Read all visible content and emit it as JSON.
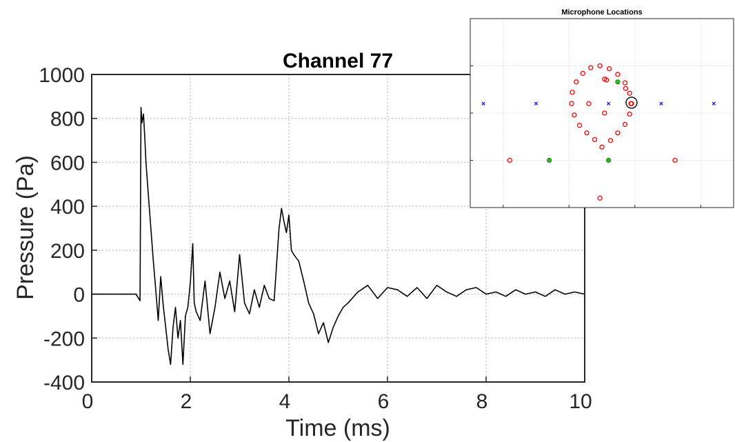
{
  "chart_data": [
    {
      "type": "line",
      "title": "Channel 77",
      "xlabel": "Time (ms)",
      "ylabel": "Pressure (Pa)",
      "xlim": [
        0,
        10
      ],
      "ylim": [
        -400,
        1000
      ],
      "xticks": [
        "0",
        "2",
        "4",
        "6",
        "8",
        "10"
      ],
      "yticks": [
        "-400",
        "-200",
        "0",
        "200",
        "400",
        "600",
        "800",
        "1000"
      ],
      "grid": true,
      "series": [
        {
          "color": "#000000",
          "x": [
            0,
            0.5,
            0.9,
            0.98,
            1.0,
            1.02,
            1.05,
            1.08,
            1.1,
            1.15,
            1.2,
            1.25,
            1.3,
            1.35,
            1.4,
            1.45,
            1.5,
            1.55,
            1.6,
            1.65,
            1.7,
            1.75,
            1.8,
            1.85,
            1.9,
            1.95,
            2.0,
            2.05,
            2.08,
            2.12,
            2.2,
            2.3,
            2.4,
            2.5,
            2.6,
            2.7,
            2.8,
            2.9,
            3.0,
            3.1,
            3.2,
            3.3,
            3.4,
            3.5,
            3.6,
            3.7,
            3.8,
            3.85,
            3.9,
            3.95,
            4.0,
            4.05,
            4.1,
            4.2,
            4.3,
            4.4,
            4.5,
            4.6,
            4.7,
            4.8,
            4.9,
            5.0,
            5.1,
            5.2,
            5.4,
            5.6,
            5.8,
            6.0,
            6.2,
            6.4,
            6.6,
            6.8,
            7.0,
            7.2,
            7.4,
            7.6,
            7.8,
            8.0,
            8.2,
            8.4,
            8.6,
            8.8,
            9.0,
            9.2,
            9.4,
            9.6,
            9.8,
            10.0
          ],
          "y": [
            0,
            0,
            0,
            -30,
            850,
            780,
            820,
            700,
            600,
            450,
            300,
            150,
            20,
            -120,
            80,
            -50,
            -150,
            -250,
            -320,
            -150,
            -60,
            -200,
            -120,
            -320,
            -100,
            -60,
            50,
            230,
            -40,
            -80,
            -120,
            60,
            -180,
            -60,
            100,
            -20,
            60,
            -80,
            180,
            -40,
            -90,
            20,
            -60,
            40,
            -20,
            -30,
            300,
            390,
            330,
            280,
            360,
            200,
            180,
            150,
            60,
            -40,
            -90,
            -180,
            -130,
            -220,
            -150,
            -100,
            -60,
            -40,
            10,
            40,
            -20,
            30,
            20,
            -10,
            30,
            -20,
            40,
            10,
            -10,
            20,
            30,
            0,
            10,
            -10,
            20,
            0,
            10,
            -10,
            20,
            0,
            10,
            0
          ]
        }
      ]
    },
    {
      "type": "scatter",
      "title": "Microphone Locations",
      "grid": true,
      "series": [
        {
          "marker": "open-circle",
          "color": "#ff0000",
          "points": [
            [
              0,
              3.2
            ],
            [
              0.65,
              3.55
            ],
            [
              1.2,
              3.95
            ],
            [
              1.75,
              4.4
            ],
            [
              2.1,
              4.95
            ],
            [
              2.25,
              5.5
            ],
            [
              2.1,
              6.05
            ],
            [
              1.75,
              6.6
            ],
            [
              1.2,
              7.05
            ],
            [
              0.55,
              7.35
            ],
            [
              -0.15,
              7.5
            ],
            [
              -0.85,
              7.4
            ],
            [
              -1.45,
              7.1
            ],
            [
              -1.95,
              6.65
            ],
            [
              -2.25,
              6.1
            ],
            [
              -2.3,
              5.5
            ],
            [
              -2.1,
              4.9
            ],
            [
              -1.7,
              4.35
            ],
            [
              -1.15,
              3.95
            ],
            [
              -0.55,
              3.6
            ],
            [
              0.2,
              6.8
            ],
            [
              0.35,
              6.75
            ],
            [
              0.2,
              5.0
            ],
            [
              -1.0,
              5.5
            ],
            [
              2.2,
              5.5
            ],
            [
              -7.0,
              2.5
            ],
            [
              1.8,
              6.3
            ],
            [
              5.55,
              2.5
            ],
            [
              -0.15,
              0.5
            ]
          ]
        },
        {
          "marker": "filled-circle",
          "color": "#2dbe1e",
          "points": [
            [
              -4.0,
              2.5
            ],
            [
              0.5,
              2.5
            ],
            [
              1.2,
              6.65
            ]
          ]
        },
        {
          "marker": "x",
          "color": "#0000ff",
          "points": [
            [
              -9.0,
              5.5
            ],
            [
              -5.0,
              5.5
            ],
            [
              0.5,
              5.5
            ],
            [
              4.5,
              5.5
            ],
            [
              8.5,
              5.5
            ]
          ]
        },
        {
          "marker": "highlight-ring",
          "color": "#000000",
          "points": [
            [
              2.25,
              5.55
            ]
          ]
        }
      ]
    }
  ]
}
